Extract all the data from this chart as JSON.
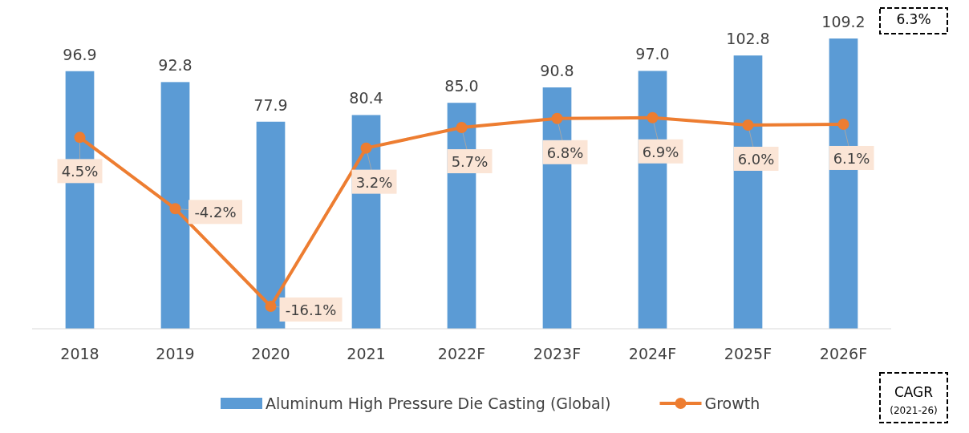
{
  "chart_data": {
    "type": "bar",
    "categories": [
      "2018",
      "2019",
      "2020",
      "2021",
      "2022F",
      "2023F",
      "2024F",
      "2025F",
      "2026F"
    ],
    "series": [
      {
        "name": "Aluminum High Pressure Die Casting (Global)",
        "color": "#5b9bd5",
        "values": [
          96.9,
          92.8,
          77.9,
          80.4,
          85.0,
          90.8,
          97.0,
          102.8,
          109.2
        ],
        "value_labels": [
          "96.9",
          "92.8",
          "77.9",
          "80.4",
          "85.0",
          "90.8",
          "97.0",
          "102.8",
          "109.2"
        ]
      },
      {
        "name": "Growth",
        "type": "line",
        "axis": "y2",
        "color": "#ed7d31",
        "values": [
          4.5,
          -4.2,
          -16.1,
          3.2,
          5.7,
          6.8,
          6.9,
          6.0,
          6.1
        ],
        "value_labels": [
          "4.5%",
          "-4.2%",
          "-16.1%",
          "3.2%",
          "5.7%",
          "6.8%",
          "6.9%",
          "6.0%",
          "6.1%"
        ]
      }
    ],
    "marker": "circle",
    "legend": "bottom",
    "annotations": [
      "6.3%",
      "CAGR",
      "(2021-26)"
    ]
  }
}
